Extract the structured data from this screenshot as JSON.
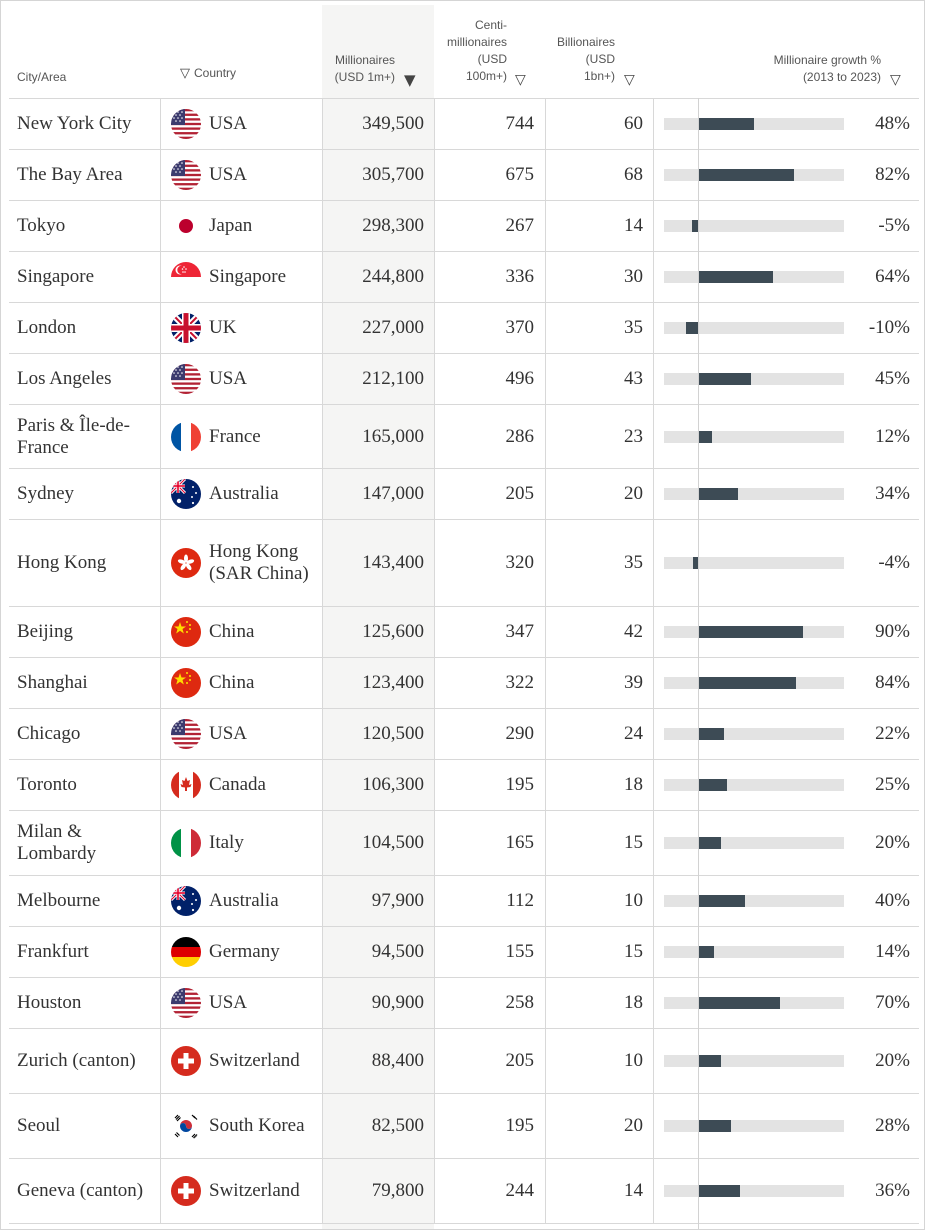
{
  "header": {
    "city": "City/Area",
    "country": "Country",
    "millionaires": "Millionaires\n(USD 1m+)",
    "centi": "Centi-\nmillionaires\n(USD\n100m+)",
    "billionaires": "Billionaires\n(USD\n1bn+)",
    "growth": "Millionaire growth %\n(2013 to 2023)",
    "sort_arrow": "▼",
    "filter_arrow": "▽"
  },
  "colors": {
    "bar": "#3d4b55",
    "track": "#e3e3e3",
    "highlight_column": "#f5f5f4",
    "grid": "#d8d8d8"
  },
  "chart_data": {
    "type": "table",
    "columns": [
      "City/Area",
      "Country",
      "Millionaires (USD 1m+)",
      "Centi-millionaires (USD 100m+)",
      "Billionaires (USD 1bn+)",
      "Millionaire growth % (2013 to 2023)"
    ],
    "sorted_by": "Millionaires (USD 1m+)",
    "growth_bar_range": [
      -15,
      130
    ],
    "rows": [
      {
        "city": "New York City",
        "country": "USA",
        "flag_icon": "usa-flag-icon",
        "millionaires": "349,500",
        "centi": "744",
        "billionaires": "60",
        "growth": 48,
        "growth_label": "48%"
      },
      {
        "city": "The Bay Area",
        "country": "USA",
        "flag_icon": "usa-flag-icon",
        "millionaires": "305,700",
        "centi": "675",
        "billionaires": "68",
        "growth": 82,
        "growth_label": "82%"
      },
      {
        "city": "Tokyo",
        "country": "Japan",
        "flag_icon": "japan-flag-icon",
        "millionaires": "298,300",
        "centi": "267",
        "billionaires": "14",
        "growth": -5,
        "growth_label": "-5%"
      },
      {
        "city": "Singapore",
        "country": "Singapore",
        "flag_icon": "singapore-flag-icon",
        "millionaires": "244,800",
        "centi": "336",
        "billionaires": "30",
        "growth": 64,
        "growth_label": "64%"
      },
      {
        "city": "London",
        "country": "UK",
        "flag_icon": "uk-flag-icon",
        "millionaires": "227,000",
        "centi": "370",
        "billionaires": "35",
        "growth": -10,
        "growth_label": "-10%"
      },
      {
        "city": "Los Angeles",
        "country": "USA",
        "flag_icon": "usa-flag-icon",
        "millionaires": "212,100",
        "centi": "496",
        "billionaires": "43",
        "growth": 45,
        "growth_label": "45%"
      },
      {
        "city": "Paris & Île-de-France",
        "country": "France",
        "flag_icon": "france-flag-icon",
        "millionaires": "165,000",
        "centi": "286",
        "billionaires": "23",
        "growth": 12,
        "growth_label": "12%"
      },
      {
        "city": "Sydney",
        "country": "Australia",
        "flag_icon": "australia-flag-icon",
        "millionaires": "147,000",
        "centi": "205",
        "billionaires": "20",
        "growth": 34,
        "growth_label": "34%"
      },
      {
        "city": "Hong Kong",
        "country": "Hong Kong (SAR China)",
        "flag_icon": "hong-kong-flag-icon",
        "millionaires": "143,400",
        "centi": "320",
        "billionaires": "35",
        "growth": -4,
        "growth_label": "-4%"
      },
      {
        "city": "Beijing",
        "country": "China",
        "flag_icon": "china-flag-icon",
        "millionaires": "125,600",
        "centi": "347",
        "billionaires": "42",
        "growth": 90,
        "growth_label": "90%"
      },
      {
        "city": "Shanghai",
        "country": "China",
        "flag_icon": "china-flag-icon",
        "millionaires": "123,400",
        "centi": "322",
        "billionaires": "39",
        "growth": 84,
        "growth_label": "84%"
      },
      {
        "city": "Chicago",
        "country": "USA",
        "flag_icon": "usa-flag-icon",
        "millionaires": "120,500",
        "centi": "290",
        "billionaires": "24",
        "growth": 22,
        "growth_label": "22%"
      },
      {
        "city": "Toronto",
        "country": "Canada",
        "flag_icon": "canada-flag-icon",
        "millionaires": "106,300",
        "centi": "195",
        "billionaires": "18",
        "growth": 25,
        "growth_label": "25%"
      },
      {
        "city": "Milan & Lombardy",
        "country": "Italy",
        "flag_icon": "italy-flag-icon",
        "millionaires": "104,500",
        "centi": "165",
        "billionaires": "15",
        "growth": 20,
        "growth_label": "20%"
      },
      {
        "city": "Melbourne",
        "country": "Australia",
        "flag_icon": "australia-flag-icon",
        "millionaires": "97,900",
        "centi": "112",
        "billionaires": "10",
        "growth": 40,
        "growth_label": "40%"
      },
      {
        "city": "Frankfurt",
        "country": "Germany",
        "flag_icon": "germany-flag-icon",
        "millionaires": "94,500",
        "centi": "155",
        "billionaires": "15",
        "growth": 14,
        "growth_label": "14%"
      },
      {
        "city": "Houston",
        "country": "USA",
        "flag_icon": "usa-flag-icon",
        "millionaires": "90,900",
        "centi": "258",
        "billionaires": "18",
        "growth": 70,
        "growth_label": "70%"
      },
      {
        "city": "Zurich (canton)",
        "country": "Switzerland",
        "flag_icon": "switzerland-flag-icon",
        "millionaires": "88,400",
        "centi": "205",
        "billionaires": "10",
        "growth": 20,
        "growth_label": "20%"
      },
      {
        "city": "Seoul",
        "country": "South Korea",
        "flag_icon": "south-korea-flag-icon",
        "millionaires": "82,500",
        "centi": "195",
        "billionaires": "20",
        "growth": 28,
        "growth_label": "28%"
      },
      {
        "city": "Geneva (canton)",
        "country": "Switzerland",
        "flag_icon": "switzerland-flag-icon",
        "millionaires": "79,800",
        "centi": "244",
        "billionaires": "14",
        "growth": 36,
        "growth_label": "36%"
      }
    ]
  }
}
